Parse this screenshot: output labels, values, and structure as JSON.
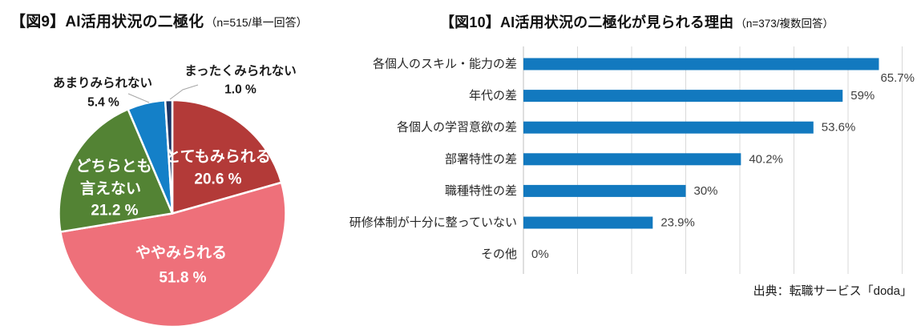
{
  "figure9": {
    "title": "【図9】AI活用状況の二極化",
    "subtitle": "（n=515/単一回答）"
  },
  "figure10": {
    "title": "【図10】AI活用状況の二極化が見られる理由",
    "subtitle": "（n=373/複数回答）",
    "source": "出典：転職サービス「doda」"
  },
  "colors": {
    "bar_blue": "#1279BF",
    "grid_line": "#D9D9D9",
    "axis_line": "#BFBFBF",
    "leader_line": "#A6A6A6"
  },
  "chart_data": [
    {
      "type": "pie",
      "title": "【図9】AI活用状況の二極化",
      "n_note": "（n=515/単一回答）",
      "slices": [
        {
          "label": "とてもみられる",
          "value": 20.6,
          "color": "#B33A38",
          "label_mode": "inside",
          "label_lines": [
            "とてもみられる",
            "20.6 %"
          ]
        },
        {
          "label": "ややみられる",
          "value": 51.8,
          "color": "#EE707A",
          "label_mode": "inside",
          "label_lines": [
            "ややみられる",
            "51.8  %"
          ]
        },
        {
          "label": "どちらとも言えない",
          "value": 21.2,
          "color": "#538334",
          "label_mode": "inside",
          "label_lines": [
            "どちらとも",
            "言えない",
            "21.2 %"
          ]
        },
        {
          "label": "あまりみられない",
          "value": 5.4,
          "color": "#1480C8",
          "label_mode": "outside",
          "label_lines": [
            "あまりみられない",
            "5.4 %"
          ]
        },
        {
          "label": "まったくみられない",
          "value": 1.0,
          "color": "#1C3564",
          "label_mode": "outside",
          "label_lines": [
            "まったくみられない",
            "1.0 %"
          ]
        }
      ],
      "start_angle_deg": 0,
      "direction": "clockwise"
    },
    {
      "type": "bar",
      "orientation": "horizontal",
      "title": "【図10】AI活用状況の二極化が見られる理由",
      "n_note": "（n=373/複数回答）",
      "categories": [
        "各個人のスキル・能力の差",
        "年代の差",
        "各個人の学習意欲の差",
        "部署特性の差",
        "職種特性の差",
        "研修体制が十分に整っていない",
        "その他"
      ],
      "values": [
        65.7,
        59,
        53.6,
        40.2,
        30,
        23.9,
        0
      ],
      "value_labels": [
        "65.7%",
        "59%",
        "53.6%",
        "40.2%",
        "30%",
        "23.9%",
        "0%"
      ],
      "xlim": [
        0,
        70
      ],
      "grid_step": 10,
      "grid_on": true,
      "legend": "none",
      "source": "出典：転職サービス「doda」"
    }
  ]
}
